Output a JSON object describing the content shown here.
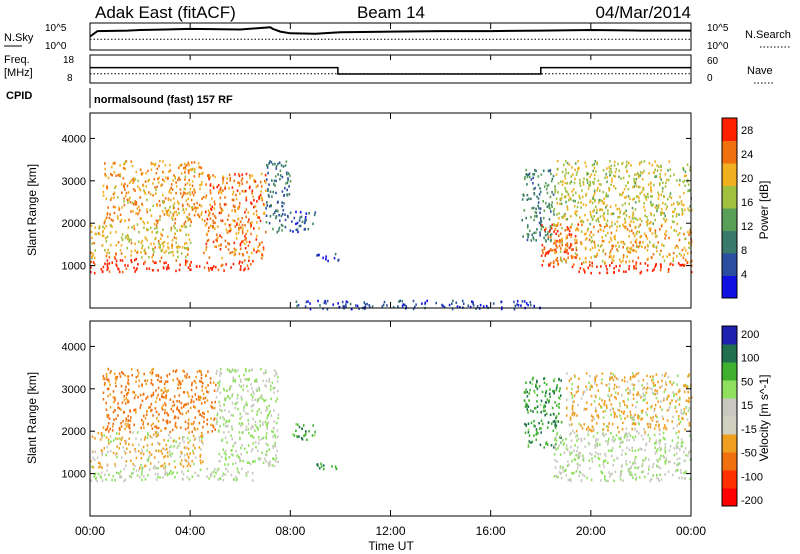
{
  "header": {
    "radar": "Adak East (fitACF)",
    "beam": "Beam 14",
    "date": "04/Mar/2014"
  },
  "top_panels": {
    "nsky_label": "N.Sky",
    "nsearch_label": "N.Search",
    "freq_label": "Freq.",
    "freq_unit": "[MHz]",
    "nave_label": "Nave",
    "cpid_label": "CPID",
    "cpid_text": "normalsound (fast) 157 RF",
    "noise_ticks": [
      "10^5",
      "10^0"
    ],
    "freq_ticks": [
      "18",
      "8"
    ],
    "nave_ticks": [
      "60",
      "0"
    ]
  },
  "time_axis": {
    "ticks": [
      "00:00",
      "04:00",
      "08:00",
      "12:00",
      "16:00",
      "20:00",
      "00:00"
    ],
    "label": "Time UT"
  },
  "colors": {
    "power_scale": [
      "#1010e0",
      "#2a4fa0",
      "#3a7a6a",
      "#58a058",
      "#a0c040",
      "#f0b020",
      "#f07010",
      "#ff2000"
    ],
    "velocity_scale": [
      "#2020b0",
      "#207050",
      "#40b030",
      "#90e060",
      "#c8c8c0",
      "#d0d0c0",
      "#f0a020",
      "#f07010",
      "#ff3000",
      "#ff0000"
    ]
  },
  "chart_data": [
    {
      "type": "line",
      "name": "noise_panel",
      "x_unit": "hours UT",
      "series": [
        {
          "name": "N.Sky",
          "x": [
            0,
            0.3,
            1.5,
            2.0,
            3.0,
            4.0,
            6.0,
            7.2,
            7.3,
            7.6,
            8.0,
            9.0,
            10.0,
            12.0,
            14.0,
            16.0,
            18.0,
            20.0,
            22.0,
            24.0
          ],
          "y": [
            2.5,
            3.5,
            3.6,
            3.7,
            3.8,
            3.9,
            3.8,
            4.2,
            3.9,
            3.4,
            3.1,
            3.0,
            3.3,
            3.4,
            3.5,
            3.5,
            3.6,
            3.7,
            3.6,
            3.6
          ]
        },
        {
          "name": "N.Search",
          "x": [
            0,
            24
          ],
          "y": [
            2.0,
            2.0
          ]
        }
      ]
    },
    {
      "type": "line",
      "name": "frequency_panel",
      "series": [
        {
          "name": "Freq. [MHz]",
          "x": [
            0,
            9.9,
            9.9,
            18.0,
            18.0,
            24.0
          ],
          "y": [
            13.5,
            13.5,
            11.2,
            11.2,
            13.5,
            13.5
          ]
        },
        {
          "name": "Nave",
          "x": [
            0,
            24
          ],
          "y": [
            20,
            20
          ]
        }
      ],
      "ylim_freq": [
        8,
        18
      ],
      "ylim_nave": [
        0,
        60
      ]
    },
    {
      "type": "heatmap",
      "name": "power_panel",
      "ylabel": "Slant Range [km]",
      "ylim": [
        0,
        4600
      ],
      "yticks": [
        1000,
        2000,
        3000,
        4000
      ],
      "xlim": [
        0,
        24
      ],
      "colorbar": {
        "label": "Power [dB]",
        "ticks": [
          4,
          8,
          12,
          16,
          20,
          24,
          28
        ],
        "range": [
          0,
          30
        ]
      },
      "bands": [
        {
          "t0": 0.0,
          "t1": 2.0,
          "r0": 850,
          "r1": 1200,
          "db": 29
        },
        {
          "t0": 2.0,
          "t1": 6.5,
          "r0": 900,
          "r1": 1150,
          "db": 28
        },
        {
          "t0": 0.0,
          "t1": 4.0,
          "r0": 1200,
          "r1": 2000,
          "db": 20
        },
        {
          "t0": 0.5,
          "t1": 4.5,
          "r0": 2000,
          "r1": 3500,
          "db": 22
        },
        {
          "t0": 4.5,
          "t1": 7.0,
          "r0": 1200,
          "r1": 3200,
          "db": 24
        },
        {
          "t0": 7.0,
          "t1": 8.0,
          "r0": 1800,
          "r1": 3500,
          "db": 8
        },
        {
          "t0": 8.0,
          "t1": 9.0,
          "r0": 1800,
          "r1": 2300,
          "db": 6
        },
        {
          "t0": 9.0,
          "t1": 10.0,
          "r0": 1100,
          "r1": 1300,
          "db": 5
        },
        {
          "t0": 17.2,
          "t1": 18.5,
          "r0": 1600,
          "r1": 3300,
          "db": 10
        },
        {
          "t0": 18.0,
          "t1": 19.5,
          "r0": 1000,
          "r1": 2000,
          "db": 27
        },
        {
          "t0": 19.5,
          "t1": 24.0,
          "r0": 850,
          "r1": 1100,
          "db": 29
        },
        {
          "t0": 18.5,
          "t1": 24.0,
          "r0": 1100,
          "r1": 2000,
          "db": 21
        },
        {
          "t0": 18.5,
          "t1": 24.0,
          "r0": 2000,
          "r1": 3500,
          "db": 18
        },
        {
          "t0": 8.0,
          "t1": 18.0,
          "r0": 0,
          "r1": 200,
          "db": 5
        }
      ]
    },
    {
      "type": "heatmap",
      "name": "velocity_panel",
      "ylabel": "Slant Range [km]",
      "ylim": [
        0,
        4600
      ],
      "yticks": [
        1000,
        2000,
        3000,
        4000
      ],
      "xlim": [
        0,
        24
      ],
      "colorbar": {
        "label": "Velocity [m s^-1]",
        "ticks": [
          200,
          100,
          50,
          15,
          -15,
          -50,
          -100,
          -200
        ]
      },
      "bands": [
        {
          "t0": 0.0,
          "t1": 6.5,
          "r0": 850,
          "r1": 1150,
          "v": 0
        },
        {
          "t0": 0.0,
          "t1": 4.5,
          "r0": 1150,
          "r1": 2000,
          "v": -20
        },
        {
          "t0": 0.5,
          "t1": 5.0,
          "r0": 2000,
          "r1": 3500,
          "v": -60
        },
        {
          "t0": 5.0,
          "t1": 7.5,
          "r0": 1200,
          "r1": 3500,
          "v": 0
        },
        {
          "t0": 8.0,
          "t1": 9.0,
          "r0": 1800,
          "r1": 2200,
          "v": 40
        },
        {
          "t0": 9.0,
          "t1": 10.0,
          "r0": 1100,
          "r1": 1300,
          "v": 40
        },
        {
          "t0": 17.3,
          "t1": 18.8,
          "r0": 1600,
          "r1": 3300,
          "v": 40
        },
        {
          "t0": 18.5,
          "t1": 24.0,
          "r0": 850,
          "r1": 1150,
          "v": 0
        },
        {
          "t0": 18.5,
          "t1": 24.0,
          "r0": 1150,
          "r1": 2000,
          "v": 0
        },
        {
          "t0": 19.0,
          "t1": 24.0,
          "r0": 2000,
          "r1": 3400,
          "v": -20
        }
      ]
    }
  ]
}
